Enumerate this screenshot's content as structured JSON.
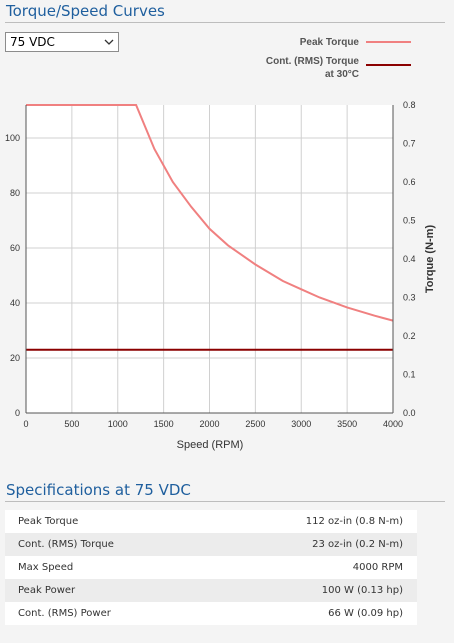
{
  "header": {
    "title": "Torque/Speed Curves"
  },
  "voltage_select": {
    "value": "75 VDC"
  },
  "legend": {
    "peak_label": "Peak Torque",
    "cont_label_line1": "Cont. (RMS) Torque",
    "cont_label_line2": "at 30°C"
  },
  "colors": {
    "peak": "#f08080",
    "cont": "#8b0000",
    "title": "#1f5f9e"
  },
  "chart_data": {
    "type": "line",
    "xlabel": "Speed (RPM)",
    "ylabel": "",
    "y2label": "Torque (N-m)",
    "xlim": [
      0,
      4000
    ],
    "ylim": [
      0,
      112
    ],
    "y2lim": [
      0,
      0.8
    ],
    "x_ticks": [
      "0",
      "500",
      "1000",
      "1500",
      "2000",
      "2500",
      "3000",
      "3500",
      "4000"
    ],
    "y_ticks": [
      "0",
      "20",
      "40",
      "60",
      "80",
      "100"
    ],
    "y2_ticks": [
      "0.0",
      "0.1",
      "0.2",
      "0.3",
      "0.4",
      "0.5",
      "0.6",
      "0.7",
      "0.8"
    ],
    "grid": true,
    "legend_position": "top-right",
    "series": [
      {
        "name": "Peak Torque",
        "x": [
          0,
          1200,
          1400,
          1600,
          1800,
          2000,
          2200,
          2500,
          2800,
          3000,
          3200,
          3500,
          3800,
          4000
        ],
        "values": [
          112,
          112,
          96,
          84,
          75,
          67,
          61,
          54,
          48,
          45,
          42,
          38.4,
          35.4,
          33.6
        ]
      },
      {
        "name": "Cont. (RMS) Torque at 30°C",
        "x": [
          0,
          4000
        ],
        "values": [
          23,
          23
        ]
      }
    ]
  },
  "specs": {
    "title": "Specifications at 75 VDC",
    "rows": [
      {
        "label": "Peak Torque",
        "value": "112 oz-in (0.8 N-m)"
      },
      {
        "label": "Cont. (RMS) Torque",
        "value": "23 oz-in (0.2 N-m)"
      },
      {
        "label": "Max Speed",
        "value": "4000 RPM"
      },
      {
        "label": "Peak Power",
        "value": "100 W (0.13 hp)"
      },
      {
        "label": "Cont. (RMS) Power",
        "value": "66 W (0.09 hp)"
      }
    ]
  }
}
